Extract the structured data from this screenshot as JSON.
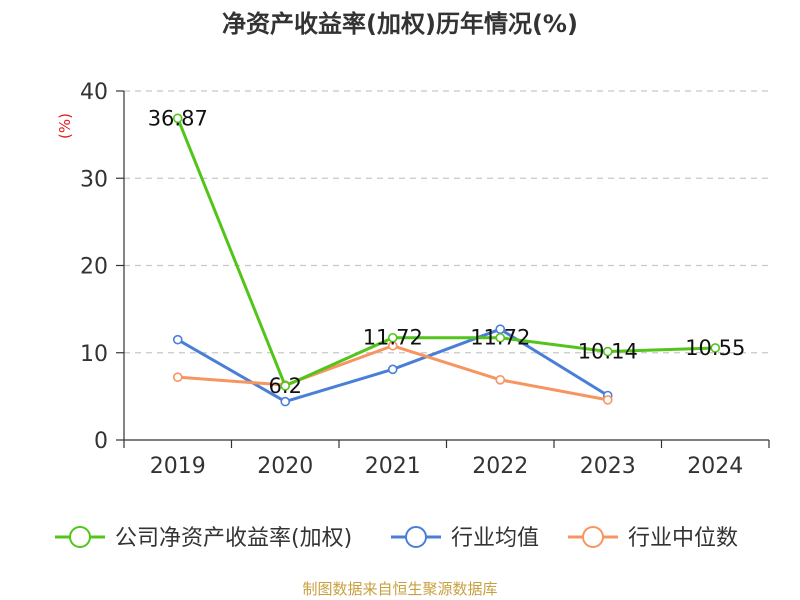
{
  "chart_data": {
    "type": "line",
    "title": "净资产收益率(加权)历年情况(%)",
    "ylabel": "(%)",
    "xlabel": "",
    "categories": [
      "2019",
      "2020",
      "2021",
      "2022",
      "2023",
      "2024"
    ],
    "ylim": [
      0,
      40
    ],
    "yticks": [
      0,
      10,
      20,
      30,
      40
    ],
    "grid": true,
    "legend_position": "bottom",
    "series": [
      {
        "name": "公司净资产收益率(加权)",
        "color": "#52c41a",
        "values": [
          36.87,
          6.2,
          11.72,
          11.72,
          10.14,
          10.55
        ],
        "labels": [
          "36.87",
          "6.2",
          "11.72",
          "11.72",
          "10.14",
          "10.55"
        ]
      },
      {
        "name": "行业均值",
        "color": "#4a7fd8",
        "values": [
          11.5,
          4.4,
          8.1,
          12.7,
          5.1,
          null
        ]
      },
      {
        "name": "行业中位数",
        "color": "#f79560",
        "values": [
          7.2,
          6.3,
          10.8,
          6.9,
          4.6,
          null
        ]
      }
    ],
    "source": "制图数据来自恒生聚源数据库"
  }
}
